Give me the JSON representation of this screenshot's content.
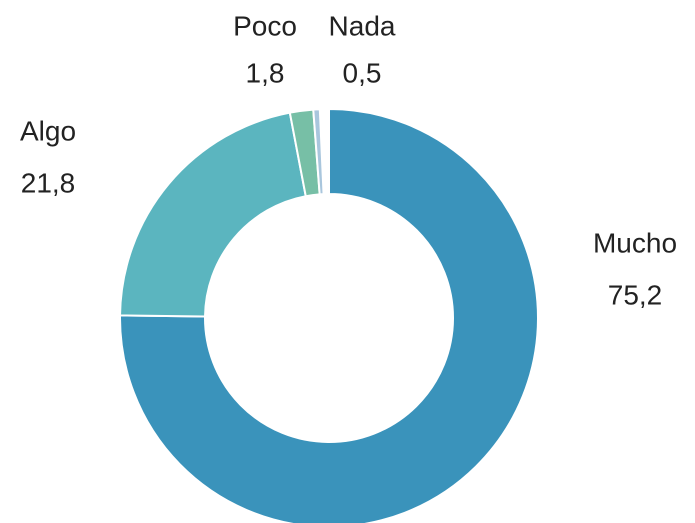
{
  "chart_data": {
    "type": "donut",
    "categories": [
      "Mucho",
      "Algo",
      "Poco",
      "Nada"
    ],
    "values": [
      75.2,
      21.8,
      1.8,
      0.5
    ],
    "value_labels": [
      "75,2",
      "21,8",
      "1,8",
      "0,5"
    ],
    "colors": [
      "#3a93bb",
      "#5bb5bf",
      "#77bfa6",
      "#a9c6dd"
    ]
  }
}
